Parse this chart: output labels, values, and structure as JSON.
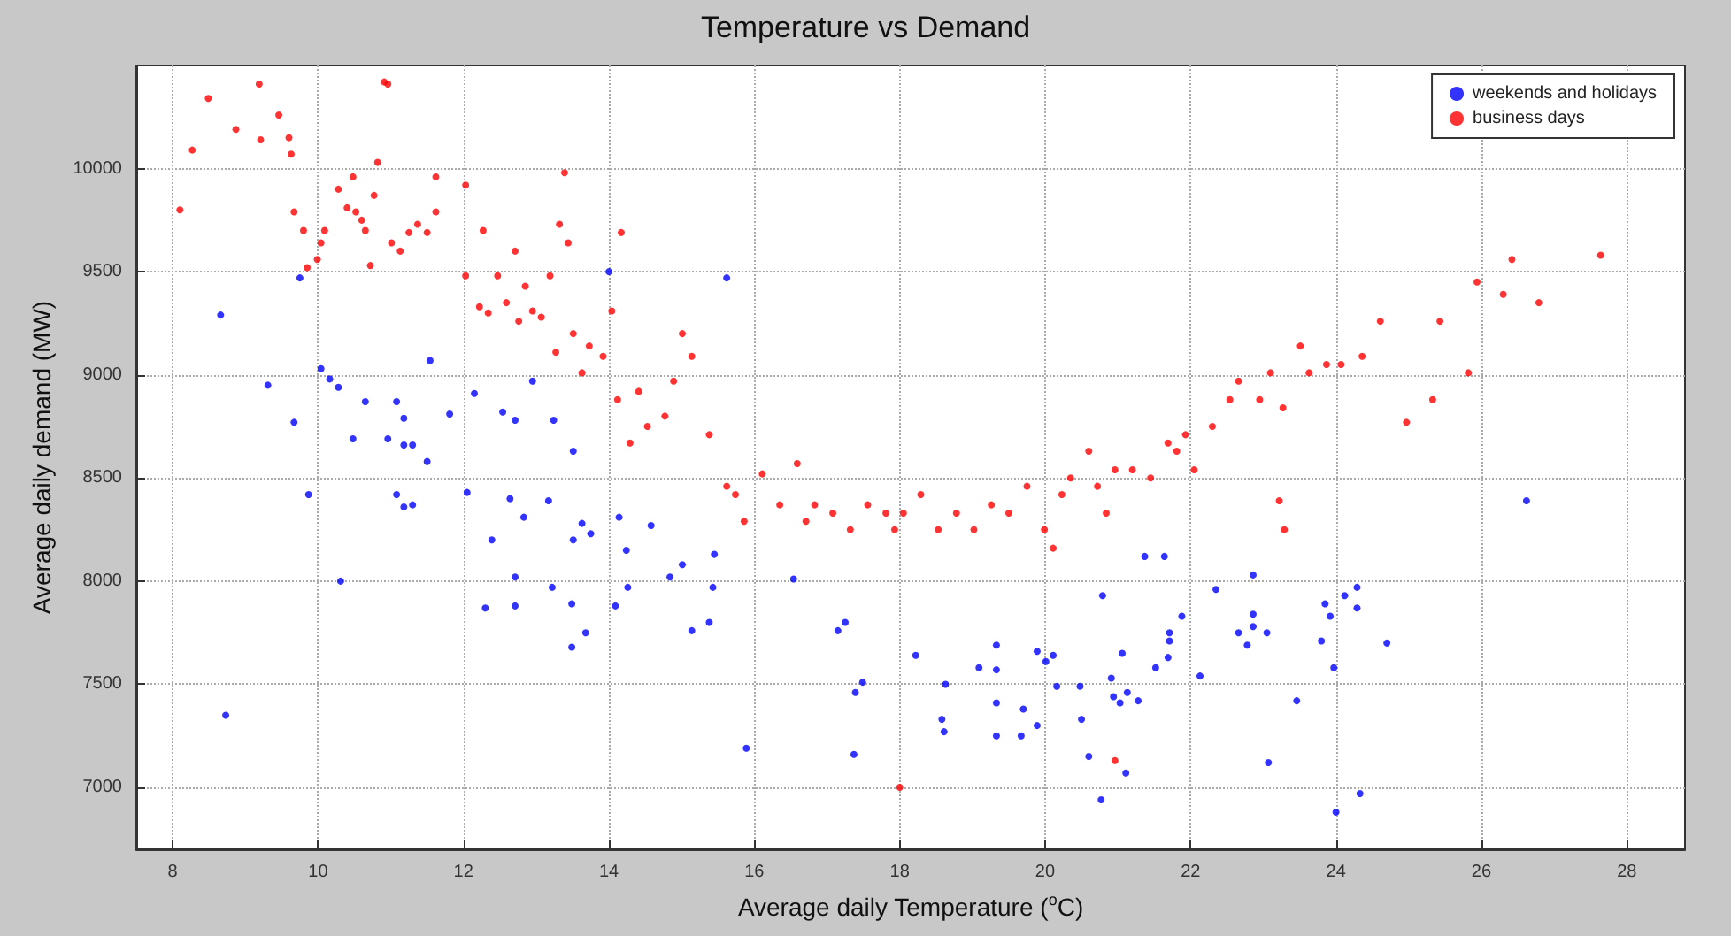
{
  "chart_data": {
    "type": "scatter",
    "title": "Temperature vs Demand",
    "xlabel": "Average daily Temperature ($^{o}$C)",
    "ylabel": "Average daily demand (MW)",
    "xlim": [
      7.5,
      28.8
    ],
    "xticks": [
      8,
      10,
      12,
      14,
      16,
      18,
      20,
      22,
      24,
      26,
      28
    ],
    "ylim": [
      6700,
      10500
    ],
    "yticks": [
      7000,
      7500,
      8000,
      8500,
      9000,
      9500,
      10000
    ],
    "grid": true,
    "legend": "top right",
    "marker": "circle",
    "series": [
      {
        "name": "weekends and holidays",
        "color": "#0000ff",
        "x": [
          9.75,
          8.66,
          10.04,
          10.16,
          10.28,
          9.31,
          9.67,
          10.65,
          11.08,
          11.18,
          11.54,
          10.48,
          10.96,
          11.18,
          11.3,
          11.5,
          11.81,
          12.15,
          12.54,
          12.71,
          12.95,
          14.0,
          15.62,
          13.51,
          13.24,
          9.87,
          8.73,
          10.31,
          11.08,
          11.18,
          11.3,
          12.05,
          12.39,
          12.64,
          12.83,
          13.17,
          12.71,
          12.3,
          12.71,
          13.22,
          13.51,
          13.63,
          13.75,
          13.49,
          13.68,
          13.49,
          14.09,
          14.14,
          14.24,
          14.26,
          14.58,
          14.84,
          15.01,
          15.14,
          15.38,
          15.43,
          15.45,
          15.89,
          16.54,
          17.15,
          17.25,
          17.49,
          17.39,
          17.37,
          18.22,
          18.63,
          18.58,
          18.61,
          19.09,
          19.33,
          19.33,
          19.33,
          19.33,
          19.67,
          19.7,
          19.89,
          19.89,
          20.01,
          20.11,
          20.16,
          20.48,
          20.5,
          20.6,
          20.77,
          20.79,
          20.91,
          20.94,
          21.03,
          21.06,
          21.13,
          21.28,
          21.11,
          21.52,
          21.69,
          21.71,
          21.71,
          21.88,
          21.64,
          21.37,
          22.13,
          22.35,
          22.66,
          22.78,
          22.86,
          22.86,
          23.05,
          22.86,
          23.07,
          23.46,
          23.8,
          23.85,
          23.92,
          23.97,
          24.0,
          24.12,
          24.29,
          24.29,
          24.33,
          24.7,
          26.62
        ],
        "values": [
          9470,
          9290,
          9030,
          8980,
          8940,
          8950,
          8770,
          8870,
          8870,
          8790,
          9070,
          8690,
          8690,
          8660,
          8660,
          8580,
          8810,
          8910,
          8820,
          8780,
          8970,
          9500,
          9470,
          8630,
          8780,
          8420,
          7350,
          8000,
          8420,
          8360,
          8370,
          8430,
          8200,
          8400,
          8310,
          8390,
          8020,
          7870,
          7880,
          7970,
          8200,
          8280,
          8230,
          7890,
          7750,
          7680,
          7880,
          8310,
          8150,
          7970,
          8270,
          8020,
          8080,
          7760,
          7800,
          7970,
          8130,
          7190,
          8010,
          7760,
          7800,
          7510,
          7460,
          7160,
          7640,
          7500,
          7330,
          7270,
          7580,
          7690,
          7570,
          7410,
          7250,
          7250,
          7380,
          7300,
          7660,
          7610,
          7640,
          7490,
          7490,
          7330,
          7150,
          6940,
          7930,
          7530,
          7440,
          7410,
          7650,
          7460,
          7420,
          7070,
          7580,
          7630,
          7750,
          7710,
          7830,
          8120,
          8120,
          7540,
          7960,
          7750,
          7690,
          7840,
          7780,
          7750,
          8030,
          7120,
          7420,
          7710,
          7890,
          7830,
          7580,
          6880,
          7930,
          7970,
          7870,
          6970,
          7700,
          8390
        ]
      },
      {
        "name": "business days",
        "color": "#ff0000",
        "x": [
          8.1,
          8.27,
          8.49,
          9.19,
          8.87,
          9.21,
          9.46,
          9.6,
          9.63,
          9.67,
          9.8,
          9.85,
          9.99,
          10.04,
          10.09,
          10.28,
          10.4,
          10.48,
          10.52,
          10.6,
          10.65,
          10.77,
          10.82,
          10.91,
          10.72,
          10.96,
          11.01,
          11.13,
          11.25,
          11.37,
          11.5,
          11.62,
          11.62,
          12.03,
          12.03,
          12.22,
          12.27,
          12.34,
          12.47,
          12.59,
          12.71,
          12.76,
          12.85,
          12.95,
          13.07,
          13.19,
          13.27,
          13.32,
          13.39,
          13.44,
          13.51,
          13.63,
          13.73,
          13.92,
          14.04,
          14.12,
          14.17,
          14.29,
          14.41,
          14.53,
          14.77,
          14.89,
          15.01,
          15.14,
          15.38,
          15.62,
          15.74,
          15.86,
          16.11,
          16.35,
          16.59,
          16.71,
          16.83,
          17.08,
          17.32,
          17.56,
          17.81,
          17.93,
          18.05,
          18.29,
          18.53,
          18.78,
          19.02,
          19.26,
          19.5,
          19.75,
          19.99,
          20.11,
          20.23,
          20.35,
          20.6,
          20.72,
          20.84,
          20.96,
          21.2,
          21.45,
          21.69,
          21.81,
          21.93,
          22.05,
          22.3,
          22.54,
          22.66,
          22.95,
          23.1,
          23.27,
          23.51,
          23.63,
          23.87,
          24.07,
          24.36,
          24.61,
          24.97,
          25.33,
          25.43,
          25.82,
          25.94,
          26.3,
          26.42,
          26.79,
          27.64,
          20.96,
          18.0,
          23.22,
          23.29
        ],
        "values": [
          9800,
          10090,
          10340,
          10410,
          10190,
          10140,
          10260,
          10150,
          10070,
          9790,
          9700,
          9520,
          9560,
          9640,
          9700,
          9900,
          9810,
          9960,
          9790,
          9750,
          9700,
          9870,
          10030,
          10420,
          9530,
          10410,
          9640,
          9600,
          9690,
          9730,
          9690,
          9790,
          9960,
          9920,
          9480,
          9330,
          9700,
          9300,
          9480,
          9350,
          9600,
          9260,
          9430,
          9310,
          9280,
          9480,
          9110,
          9730,
          9980,
          9640,
          9200,
          9010,
          9140,
          9090,
          9310,
          8880,
          9690,
          8670,
          8920,
          8750,
          8800,
          8970,
          9200,
          9090,
          8710,
          8460,
          8420,
          8290,
          8520,
          8370,
          8570,
          8290,
          8370,
          8330,
          8250,
          8370,
          8330,
          8250,
          8330,
          8420,
          8250,
          8330,
          8250,
          8370,
          8330,
          8460,
          8250,
          8160,
          8420,
          8500,
          8630,
          8460,
          8330,
          8540,
          8540,
          8500,
          8670,
          8630,
          8710,
          8540,
          8750,
          8880,
          8970,
          8880,
          9010,
          8840,
          9140,
          9010,
          9050,
          9050,
          9090,
          9260,
          8770,
          8880,
          9260,
          9010,
          9450,
          9390,
          9560,
          9350,
          9580,
          7130,
          7000,
          8390,
          8250
        ]
      }
    ]
  }
}
